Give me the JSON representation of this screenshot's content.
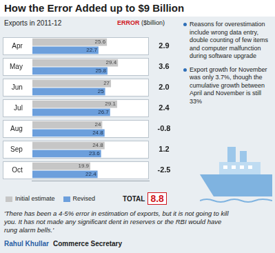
{
  "chart_data": {
    "type": "bar",
    "title": "How the Error Added up to $9 Billion",
    "subtitle": "Exports in 2011-12",
    "orientation": "horizontal",
    "categories": [
      "Apr",
      "May",
      "Jun",
      "Jul",
      "Aug",
      "Sep",
      "Oct"
    ],
    "series": [
      {
        "name": "Initial estimate",
        "color": "#c6c6c6",
        "values": [
          25.6,
          29.4,
          27,
          29.1,
          24,
          24.8,
          19.9
        ]
      },
      {
        "name": "Revised",
        "color": "#6c9fdc",
        "values": [
          22.7,
          25.8,
          25,
          26.7,
          24.8,
          23.6,
          22.4
        ]
      }
    ],
    "xlim": [
      0,
      40
    ],
    "tick_labels": "y",
    "grid": false,
    "data_labels": true,
    "legend": "bottom",
    "error": {
      "title": "ERROR",
      "unit": "($billion)",
      "values": [
        2.9,
        3.6,
        2.0,
        2.4,
        -0.8,
        1.2,
        -2.5
      ],
      "total_label": "TOTAL",
      "total": 8.8
    }
  },
  "notes": [
    "Reasons for overestimation include wrong data entry, double counting of few items and computer malfunction during software upgrade",
    "Export growth for November was only 3.7%, though the cumulative growth between April and November is still 33%"
  ],
  "quote": {
    "text": "'There has been a 4-5% error in estimation of exports, but it is not going to kill you. It has not made any significant dent in reserves or the RBI would have rung alarm bells.'",
    "name": "Rahul Khullar",
    "role": "Commerce Secretary"
  }
}
